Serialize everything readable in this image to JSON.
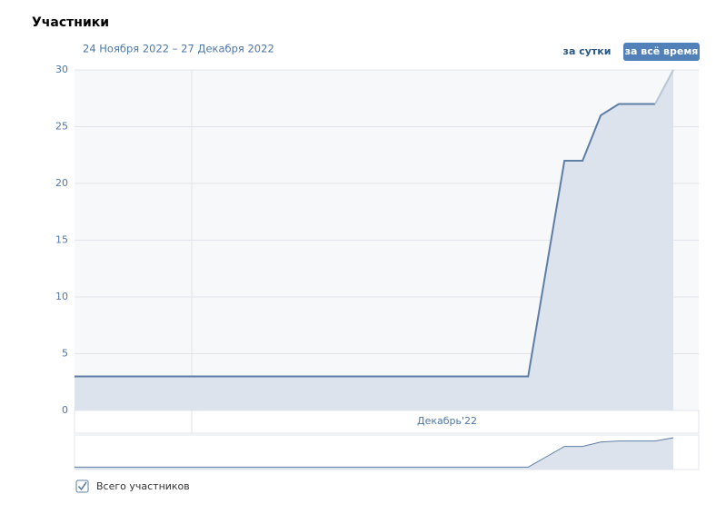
{
  "header": {
    "title": "Участники"
  },
  "controls": [
    "за сутки",
    "за всё время"
  ],
  "chart_data": {
    "type": "area",
    "subtitle": "24 Ноября 2022 – 27 Декабря 2022",
    "x_period_label": "Декабрь'22",
    "series": [
      {
        "name": "Всего участников",
        "color": "#5e7ea6",
        "values": [
          3,
          3,
          3,
          3,
          3,
          3,
          3,
          3,
          3,
          3,
          3,
          3,
          3,
          3,
          3,
          3,
          3,
          3,
          3,
          3,
          3,
          3,
          3,
          3,
          3,
          3,
          12.5,
          22,
          22,
          26,
          27,
          27,
          27,
          30
        ]
      }
    ],
    "ylim": [
      0,
      30
    ],
    "yticks": [
      0,
      5,
      10,
      15,
      20,
      25,
      30
    ],
    "grid": true
  }
}
